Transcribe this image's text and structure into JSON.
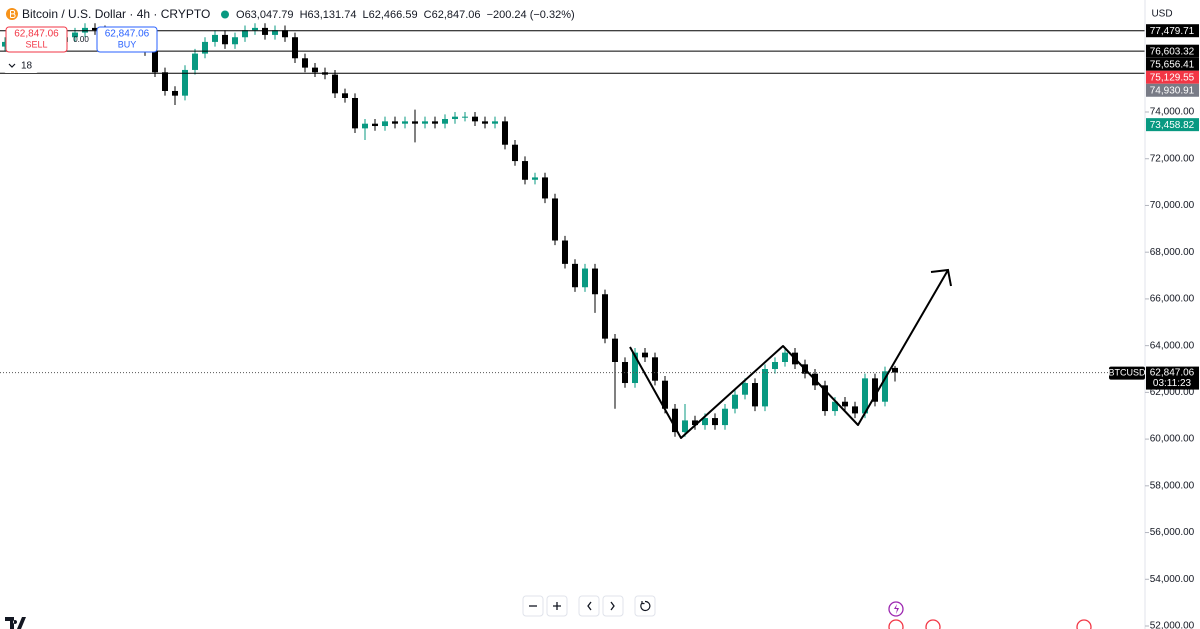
{
  "header": {
    "title": "Bitcoin / U.S. Dollar · 4h · CRYPTO",
    "ohlc": [
      {
        "key": "O",
        "value": "63,047.79"
      },
      {
        "key": "H",
        "value": "63,131.74"
      },
      {
        "key": "L",
        "value": "62,466.59"
      },
      {
        "key": "C",
        "value": "62,847.06"
      }
    ],
    "change": "−200.24 (−0.32%)"
  },
  "trade_panel": {
    "sell_price": "62,847.06",
    "sell_label": "SELL",
    "spread": "0.00",
    "buy_price": "62,847.06",
    "buy_label": "BUY",
    "indicator_count": "18"
  },
  "currency": "USD",
  "chart_data": {
    "type": "candlestick",
    "up_color": "#089981",
    "down_color": "#000000",
    "grid": false,
    "ylim": [
      51872,
      78794
    ],
    "yticks": [
      {
        "value": 74000,
        "label": "74,000.00"
      },
      {
        "value": 72000,
        "label": "72,000.00"
      },
      {
        "value": 70000,
        "label": "70,000.00"
      },
      {
        "value": 68000,
        "label": "68,000.00"
      },
      {
        "value": 66000,
        "label": "66,000.00"
      },
      {
        "value": 64000,
        "label": "64,000.00"
      },
      {
        "value": 62000,
        "label": "62,000.00"
      },
      {
        "value": 60000,
        "label": "60,000.00"
      },
      {
        "value": 58000,
        "label": "58,000.00"
      },
      {
        "value": 56000,
        "label": "56,000.00"
      },
      {
        "value": 54000,
        "label": "54,000.00"
      },
      {
        "value": 52000,
        "label": "52,000.00"
      }
    ],
    "levels": [
      {
        "value": 77479.71,
        "label": "77,479.71"
      },
      {
        "value": 76603.32,
        "label": "76,603.32"
      },
      {
        "value": 75656.41,
        "label": "75,656.41"
      }
    ],
    "price_labels": [
      {
        "value": 75129.55,
        "label": "75,129.55",
        "color": "#f23645"
      },
      {
        "value": 74930.91,
        "label": "74,930.91",
        "color": "#787b86"
      },
      {
        "value": 73458.82,
        "label": "73,458.82",
        "color": "#089981"
      }
    ],
    "last_price": {
      "value": 62847.06,
      "label": "62,847.06"
    },
    "countdown": "03:11:23",
    "symbol_tag": "BTCUSD",
    "open": [
      76800,
      77000,
      77200,
      76900,
      77100,
      77300,
      77000,
      77200,
      77400,
      77600,
      77500,
      77300,
      77100,
      77200,
      76900,
      76600,
      75700,
      74900,
      74700,
      75800,
      76500,
      77000,
      77300,
      76900,
      77200,
      77500,
      77600,
      77300,
      77500,
      77200,
      76300,
      75900,
      75700,
      75600,
      74800,
      74600,
      73300,
      73500,
      73400,
      73600,
      73500,
      73600,
      73500,
      73600,
      73500,
      73700,
      73800,
      73800,
      73600,
      73500,
      73600,
      72600,
      71900,
      71100,
      71200,
      70300,
      68500,
      67500,
      66500,
      67300,
      66200,
      64300,
      63300,
      62400,
      63700,
      63500,
      62500,
      61300,
      60300,
      60800,
      60600,
      60900,
      60600,
      61300,
      61900,
      62400,
      61400,
      63000,
      63300,
      63700,
      63200,
      62800,
      62300,
      61200,
      61600,
      61400,
      61100,
      62600,
      61600,
      63047.79
    ],
    "high": [
      77200,
      77400,
      77400,
      77300,
      77500,
      77500,
      77400,
      77600,
      77800,
      77800,
      77700,
      77500,
      77400,
      77400,
      77100,
      76800,
      75900,
      75100,
      76000,
      76700,
      77200,
      77500,
      77500,
      77400,
      77700,
      77800,
      77800,
      77700,
      77700,
      77400,
      76500,
      76100,
      75900,
      75800,
      75000,
      74800,
      73700,
      73700,
      73800,
      73800,
      73800,
      74100,
      73800,
      73800,
      73900,
      74000,
      74000,
      74000,
      73800,
      73800,
      73800,
      72800,
      72100,
      71400,
      71400,
      70500,
      68700,
      67700,
      67500,
      67500,
      66400,
      64500,
      63500,
      63900,
      63900,
      63700,
      62700,
      61500,
      61500,
      61000,
      61100,
      61100,
      61500,
      62100,
      62600,
      62600,
      63200,
      63500,
      63900,
      63900,
      63400,
      63000,
      62500,
      61800,
      61800,
      61600,
      62800,
      62800,
      63100,
      63131.74
    ],
    "low": [
      76600,
      76800,
      76700,
      76700,
      76900,
      76800,
      76800,
      77000,
      77200,
      77300,
      77100,
      76900,
      76900,
      76700,
      76400,
      75500,
      74700,
      74300,
      74500,
      75600,
      76300,
      76800,
      76700,
      76700,
      77000,
      77300,
      77100,
      77100,
      77000,
      76100,
      75700,
      75500,
      75400,
      74600,
      74400,
      73100,
      72800,
      73200,
      73200,
      73300,
      73300,
      72700,
      73300,
      73300,
      73300,
      73500,
      73600,
      73400,
      73300,
      73300,
      72400,
      71700,
      70900,
      70900,
      70100,
      68300,
      67300,
      66300,
      66300,
      65400,
      64100,
      61300,
      62200,
      62200,
      63300,
      62300,
      61100,
      60100,
      60100,
      60400,
      60400,
      60400,
      60400,
      61100,
      61700,
      61200,
      61200,
      62800,
      63100,
      63000,
      62600,
      62100,
      61000,
      61000,
      61200,
      60900,
      60900,
      61400,
      61400,
      62466.59
    ],
    "close": [
      77000,
      77200,
      76900,
      77100,
      77300,
      77000,
      77200,
      77400,
      77600,
      77500,
      77300,
      77100,
      77200,
      76900,
      76600,
      75700,
      74900,
      74700,
      75800,
      76500,
      77000,
      77300,
      76900,
      77200,
      77500,
      77600,
      77300,
      77500,
      77200,
      76300,
      75900,
      75700,
      75600,
      74800,
      74600,
      73300,
      73500,
      73400,
      73600,
      73500,
      73600,
      73500,
      73600,
      73500,
      73700,
      73800,
      73800,
      73600,
      73500,
      73600,
      72600,
      71900,
      71100,
      71200,
      70300,
      68500,
      67500,
      66500,
      67300,
      66200,
      64300,
      63300,
      62400,
      63700,
      63500,
      62500,
      61300,
      60300,
      60800,
      60600,
      60900,
      60600,
      61300,
      61900,
      62400,
      61400,
      63000,
      63300,
      63700,
      63200,
      62800,
      62300,
      61200,
      61600,
      61400,
      61100,
      62600,
      61600,
      62900,
      62847.06
    ]
  }
}
